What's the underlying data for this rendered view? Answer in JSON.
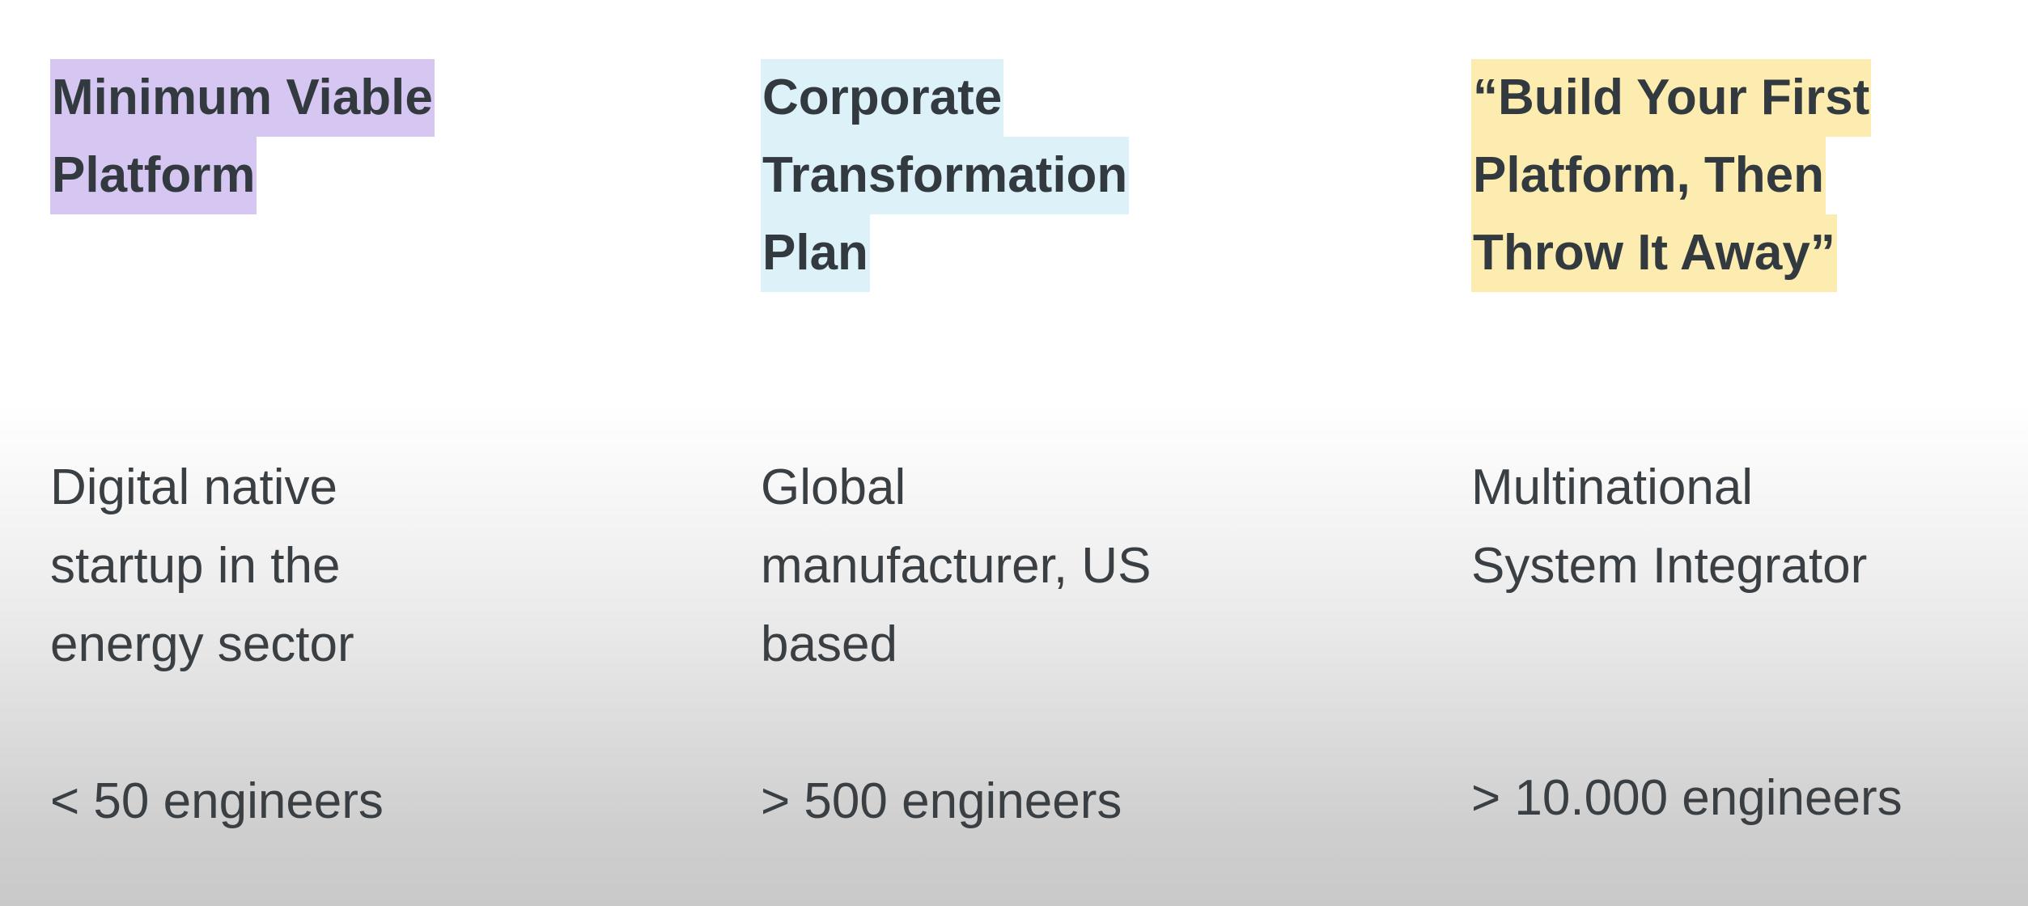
{
  "columns": [
    {
      "title_lines": [
        "Minimum Viable",
        "Platform"
      ],
      "highlight_color": "#d6c6f2",
      "description_lines": [
        "Digital native",
        "startup in the",
        "energy sector"
      ],
      "engineers": "< 50 engineers"
    },
    {
      "title_lines": [
        "Corporate",
        "Transformation",
        "Plan"
      ],
      "highlight_color": "#ddf1f8",
      "description_lines": [
        "Global",
        "manufacturer, US",
        "based"
      ],
      "engineers": "> 500 engineers"
    },
    {
      "title_lines": [
        "“Build Your First",
        "Platform, Then",
        "Throw It Away”"
      ],
      "highlight_color": "#fcecb0",
      "description_lines": [
        "Multinational",
        "System Integrator"
      ],
      "engineers": "> 10.000 engineers"
    }
  ]
}
